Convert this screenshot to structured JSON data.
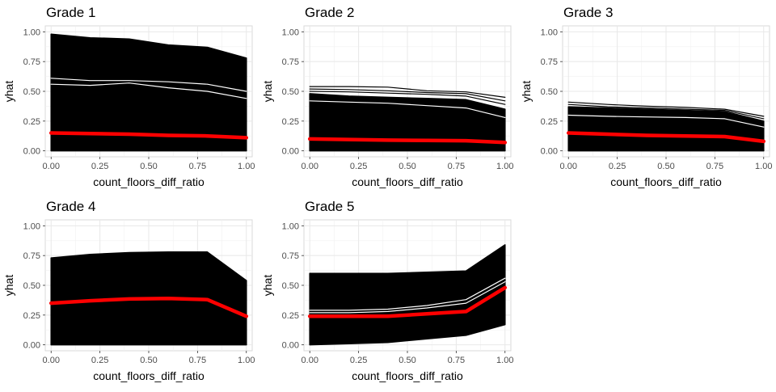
{
  "chart_data": [
    {
      "type": "line",
      "title": "Grade 1",
      "xlabel": "count_floors_diff_ratio",
      "ylabel": "yhat",
      "xlim": [
        -0.03,
        1.03
      ],
      "ylim": [
        -0.05,
        1.05
      ],
      "xticks": [
        "0.00",
        "0.25",
        "0.50",
        "0.75",
        "1.00"
      ],
      "yticks": [
        "0.00",
        "0.25",
        "0.50",
        "0.75",
        "1.00"
      ],
      "grid": true,
      "x": [
        0,
        0.2,
        0.4,
        0.6,
        0.8,
        1.0
      ],
      "ice_band": {
        "lower": [
          0,
          0,
          0,
          0,
          0,
          0
        ],
        "upper": [
          0.98,
          0.95,
          0.94,
          0.89,
          0.87,
          0.78
        ],
        "color": "#000000"
      },
      "series": [
        {
          "values": [
            0.61,
            0.59,
            0.59,
            0.58,
            0.56,
            0.5
          ],
          "color": "#ffffff",
          "role": "individual"
        },
        {
          "values": [
            0.56,
            0.55,
            0.57,
            0.53,
            0.5,
            0.44
          ],
          "color": "#ffffff",
          "role": "individual"
        },
        {
          "values": [
            0.15,
            0.145,
            0.14,
            0.13,
            0.125,
            0.11
          ],
          "color": "#ff0000",
          "role": "average"
        }
      ]
    },
    {
      "type": "line",
      "title": "Grade 2",
      "xlabel": "count_floors_diff_ratio",
      "ylabel": "yhat",
      "xlim": [
        -0.03,
        1.03
      ],
      "ylim": [
        -0.05,
        1.05
      ],
      "xticks": [
        "0.00",
        "0.25",
        "0.50",
        "0.75",
        "1.00"
      ],
      "yticks": [
        "0.00",
        "0.25",
        "0.50",
        "0.75",
        "1.00"
      ],
      "grid": true,
      "x": [
        0,
        0.2,
        0.4,
        0.6,
        0.8,
        1.0
      ],
      "ice_band": {
        "lower": [
          0,
          0,
          0,
          0,
          0,
          0
        ],
        "upper": [
          0.48,
          0.46,
          0.45,
          0.44,
          0.43,
          0.35
        ],
        "color": "#000000"
      },
      "series": [
        {
          "values": [
            0.54,
            0.54,
            0.535,
            0.505,
            0.495,
            0.45
          ],
          "color": "#000000",
          "role": "individual"
        },
        {
          "values": [
            0.52,
            0.515,
            0.505,
            0.49,
            0.48,
            0.42
          ],
          "color": "#000000",
          "role": "individual"
        },
        {
          "values": [
            0.5,
            0.495,
            0.485,
            0.475,
            0.46,
            0.39
          ],
          "color": "#000000",
          "role": "individual"
        },
        {
          "values": [
            0.42,
            0.41,
            0.4,
            0.38,
            0.36,
            0.28
          ],
          "color": "#ffffff",
          "role": "individual"
        },
        {
          "values": [
            0.1,
            0.095,
            0.09,
            0.088,
            0.085,
            0.07
          ],
          "color": "#ff0000",
          "role": "average"
        }
      ]
    },
    {
      "type": "line",
      "title": "Grade 3",
      "xlabel": "count_floors_diff_ratio",
      "ylabel": "yhat",
      "xlim": [
        -0.03,
        1.03
      ],
      "ylim": [
        -0.05,
        1.05
      ],
      "xticks": [
        "0.00",
        "0.25",
        "0.50",
        "0.75",
        "1.00"
      ],
      "yticks": [
        "0.00",
        "0.25",
        "0.50",
        "0.75",
        "1.00"
      ],
      "grid": true,
      "x": [
        0,
        0.2,
        0.4,
        0.6,
        0.8,
        1.0
      ],
      "ice_band": {
        "lower": [
          0,
          0,
          0,
          0,
          0,
          0
        ],
        "upper": [
          0.37,
          0.36,
          0.35,
          0.34,
          0.33,
          0.25
        ],
        "color": "#000000"
      },
      "series": [
        {
          "values": [
            0.41,
            0.39,
            0.375,
            0.365,
            0.35,
            0.29
          ],
          "color": "#000000",
          "role": "individual"
        },
        {
          "values": [
            0.39,
            0.37,
            0.36,
            0.35,
            0.34,
            0.27
          ],
          "color": "#000000",
          "role": "individual"
        },
        {
          "values": [
            0.3,
            0.29,
            0.285,
            0.28,
            0.27,
            0.2
          ],
          "color": "#ffffff",
          "role": "individual"
        },
        {
          "values": [
            0.15,
            0.14,
            0.13,
            0.125,
            0.12,
            0.08
          ],
          "color": "#ff0000",
          "role": "average"
        }
      ]
    },
    {
      "type": "line",
      "title": "Grade 4",
      "xlabel": "count_floors_diff_ratio",
      "ylabel": "yhat",
      "xlim": [
        -0.03,
        1.03
      ],
      "ylim": [
        -0.05,
        1.05
      ],
      "xticks": [
        "0.00",
        "0.25",
        "0.50",
        "0.75",
        "1.00"
      ],
      "yticks": [
        "0.00",
        "0.25",
        "0.50",
        "0.75",
        "1.00"
      ],
      "grid": true,
      "x": [
        0,
        0.2,
        0.4,
        0.6,
        0.8,
        1.0
      ],
      "ice_band": {
        "lower": [
          0,
          0,
          0,
          0,
          0,
          0
        ],
        "upper": [
          0.73,
          0.76,
          0.775,
          0.78,
          0.78,
          0.54
        ],
        "color": "#000000"
      },
      "series": [
        {
          "values": [
            0.35,
            0.37,
            0.385,
            0.39,
            0.38,
            0.24
          ],
          "color": "#ff0000",
          "role": "average"
        }
      ]
    },
    {
      "type": "line",
      "title": "Grade 5",
      "xlabel": "count_floors_diff_ratio",
      "ylabel": "yhat",
      "xlim": [
        -0.03,
        1.03
      ],
      "ylim": [
        -0.05,
        1.05
      ],
      "xticks": [
        "0.00",
        "0.25",
        "0.50",
        "0.75",
        "1.00"
      ],
      "yticks": [
        "0.00",
        "0.25",
        "0.50",
        "0.75",
        "1.00"
      ],
      "grid": true,
      "x": [
        0,
        0.2,
        0.4,
        0.6,
        0.8,
        1.0
      ],
      "ice_band": {
        "lower": [
          0,
          0.01,
          0.02,
          0.05,
          0.08,
          0.17
        ],
        "upper": [
          0.6,
          0.6,
          0.6,
          0.61,
          0.62,
          0.84
        ],
        "color": "#000000"
      },
      "series": [
        {
          "values": [
            0.29,
            0.29,
            0.3,
            0.33,
            0.38,
            0.56
          ],
          "color": "#ffffff",
          "role": "individual"
        },
        {
          "values": [
            0.27,
            0.27,
            0.28,
            0.31,
            0.35,
            0.53
          ],
          "color": "#ffffff",
          "role": "individual"
        },
        {
          "values": [
            0.24,
            0.24,
            0.24,
            0.26,
            0.28,
            0.48
          ],
          "color": "#ff0000",
          "role": "average"
        }
      ]
    }
  ]
}
